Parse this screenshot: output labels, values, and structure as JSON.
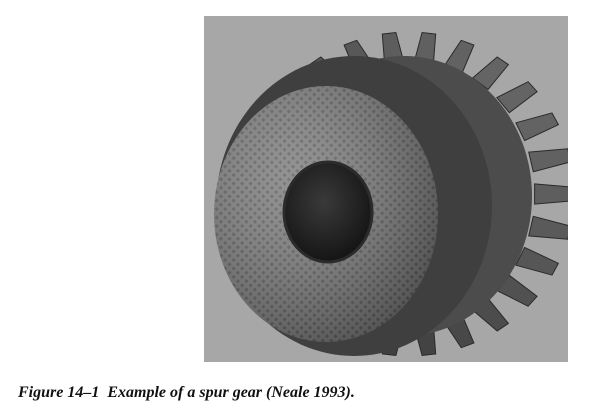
{
  "figure": {
    "number": "Figure 14–1",
    "caption": "Example of a spur gear (Neale 1993).",
    "image_subject": "spur-gear-photo"
  }
}
